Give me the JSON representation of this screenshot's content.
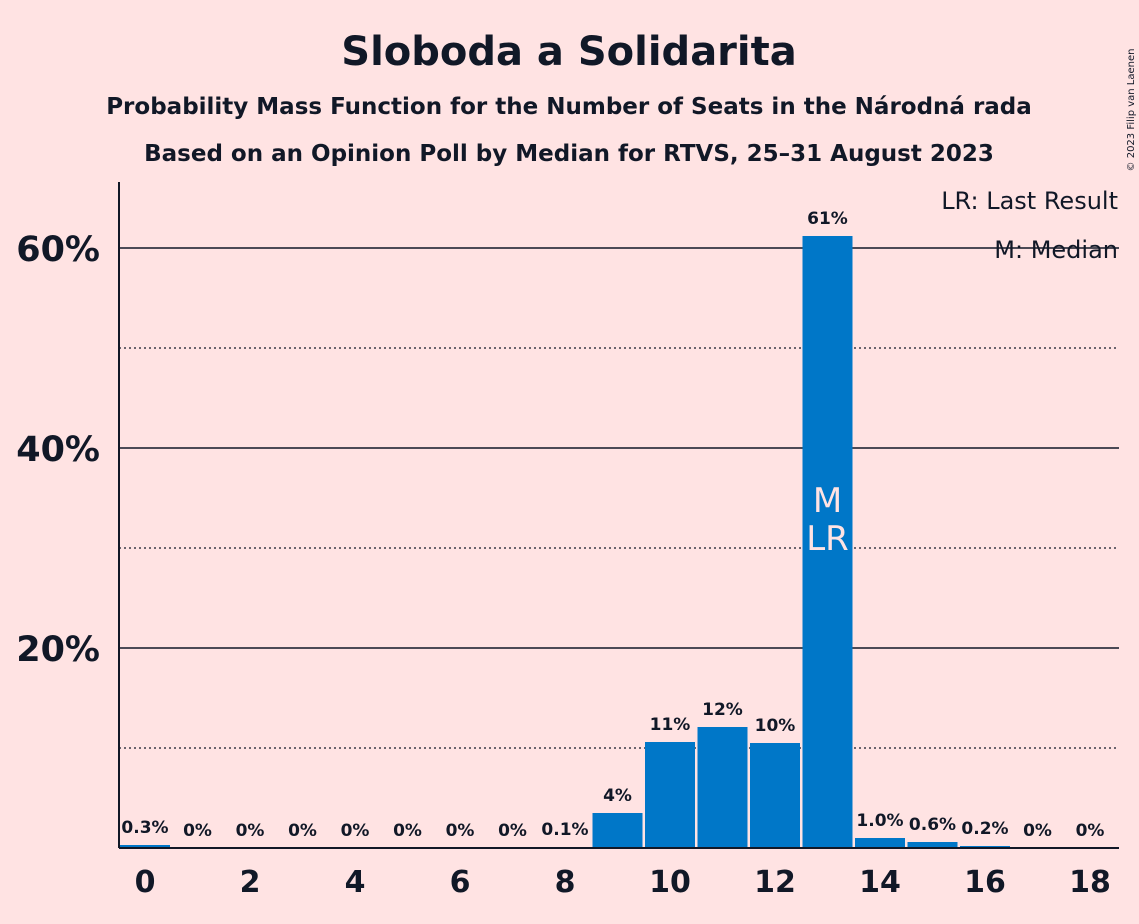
{
  "title": "Sloboda a Solidarita",
  "subtitle1": "Probability Mass Function for the Number of Seats in the Národná rada",
  "subtitle2": "Based on an Opinion Poll by Median for RTVS, 25–31 August 2023",
  "copyright": "© 2023 Filip van Laenen",
  "legend": {
    "last_result": "LR: Last Result",
    "median": "M: Median"
  },
  "colors": {
    "background": "#FFE3E3",
    "bar": "#0077C8",
    "text": "#111827"
  },
  "chart_data": {
    "type": "bar",
    "title": "Sloboda a Solidarita",
    "x": [
      0,
      1,
      2,
      3,
      4,
      5,
      6,
      7,
      8,
      9,
      10,
      11,
      12,
      13,
      14,
      15,
      16,
      17,
      18
    ],
    "values": [
      0.3,
      0,
      0,
      0,
      0,
      0,
      0,
      0,
      0.1,
      3.5,
      10.6,
      12.1,
      10.5,
      61.2,
      1.0,
      0.6,
      0.2,
      0,
      0
    ],
    "value_labels": [
      "0.3%",
      "0%",
      "0%",
      "0%",
      "0%",
      "0%",
      "0%",
      "0%",
      "0.1%",
      "4%",
      "11%",
      "12%",
      "10%",
      "61%",
      "1.0%",
      "0.6%",
      "0.2%",
      "0%",
      "0%"
    ],
    "x_tick_labels": [
      "0",
      "2",
      "4",
      "6",
      "8",
      "10",
      "12",
      "14",
      "16",
      "18"
    ],
    "y_ticks": [
      20,
      40,
      60
    ],
    "y_tick_labels": [
      "20%",
      "40%",
      "60%"
    ],
    "y_minor_ticks": [
      10,
      30,
      50
    ],
    "ylim": [
      0,
      67
    ],
    "grid": true,
    "legend_position": "top-right",
    "median_seat": 13,
    "median_marker": "M",
    "last_result_seat": 13,
    "last_result_marker": "LR"
  }
}
